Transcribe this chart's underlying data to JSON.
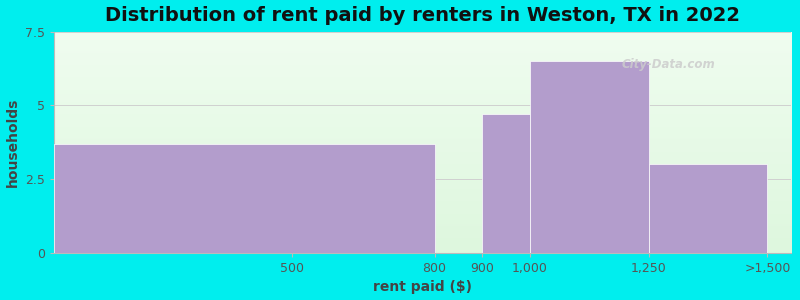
{
  "title": "Distribution of rent paid by renters in Weston, TX in 2022",
  "xlabel": "rent paid ($)",
  "ylabel": "households",
  "tick_labels": [
    "500",
    "800",
    "900",
    "1,000",
    "1,250",
    ">1,500"
  ],
  "tick_positions": [
    500,
    800,
    900,
    1000,
    1250,
    1500
  ],
  "bins_left": [
    0,
    800,
    900,
    1000,
    1250
  ],
  "bins_right": [
    800,
    900,
    1000,
    1250,
    1500
  ],
  "bin_heights": [
    3.7,
    0.0,
    4.7,
    6.5,
    3.0
  ],
  "bar_color": "#b39dcc",
  "bar_edgecolor": "#ffffff",
  "ylim": [
    0,
    7.5
  ],
  "yticks": [
    0,
    2.5,
    5,
    7.5
  ],
  "xlim_left": 0,
  "xlim_right": 1550,
  "background_outer": "#00eeee",
  "title_fontsize": 14,
  "axis_label_fontsize": 10,
  "tick_fontsize": 9,
  "watermark": "City-Data.com"
}
